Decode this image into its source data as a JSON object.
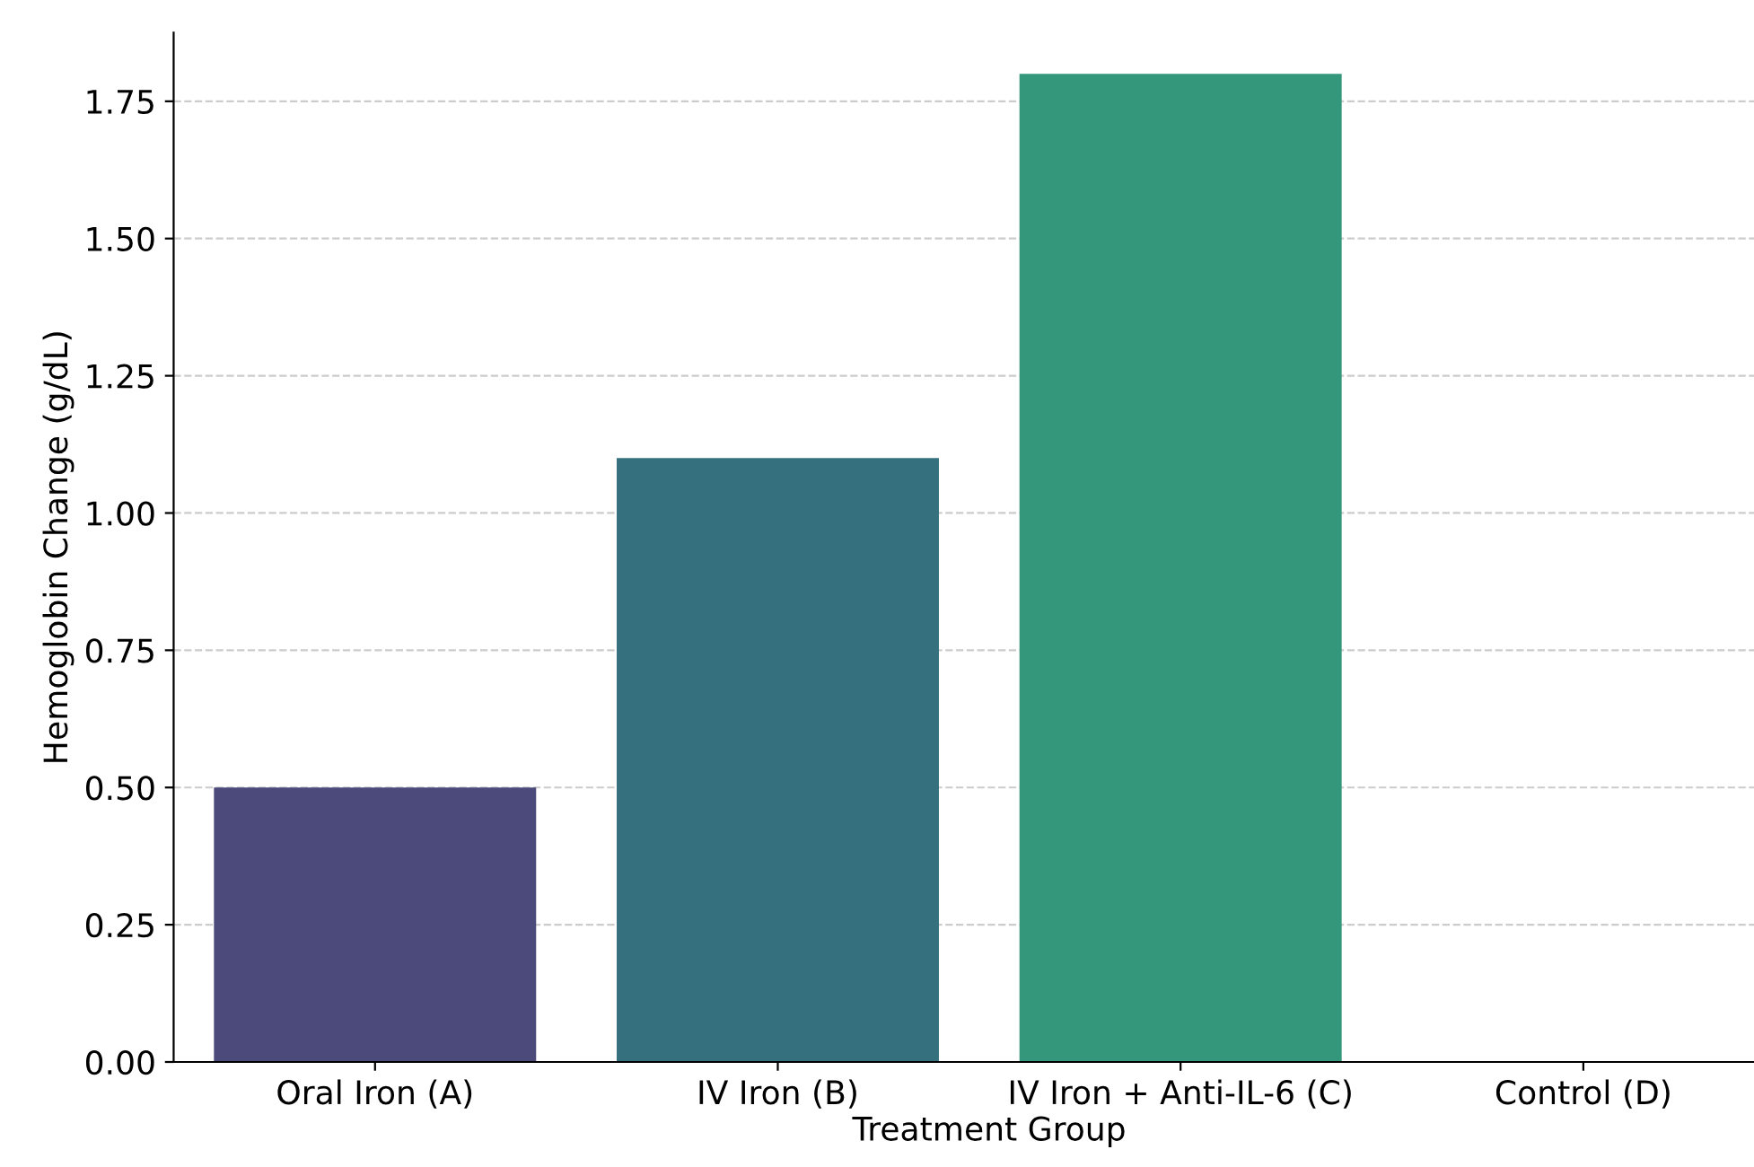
{
  "chart_data": {
    "type": "bar",
    "xlabel": "Treatment Group",
    "ylabel": "Hemoglobin Change (g/dL)",
    "categories": [
      "Oral Iron (A)",
      "IV Iron (B)",
      "IV Iron + Anti-IL-6 (C)",
      "Control (D)"
    ],
    "values": [
      0.5,
      1.1,
      1.8,
      0
    ],
    "colors": [
      "#4b4a7b",
      "#35707f",
      "#34967a",
      "#3fbc73"
    ],
    "ylim": [
      0,
      1.875
    ],
    "yticks": [
      {
        "value": 0,
        "label": "0.00"
      },
      {
        "value": 0.25,
        "label": "0.25"
      },
      {
        "value": 0.5,
        "label": "0.50"
      },
      {
        "value": 0.75,
        "label": "0.75"
      },
      {
        "value": 1,
        "label": "1.00"
      },
      {
        "value": 1.25,
        "label": "1.25"
      },
      {
        "value": 1.5,
        "label": "1.50"
      },
      {
        "value": 1.75,
        "label": "1.75"
      }
    ],
    "grid": "y"
  }
}
